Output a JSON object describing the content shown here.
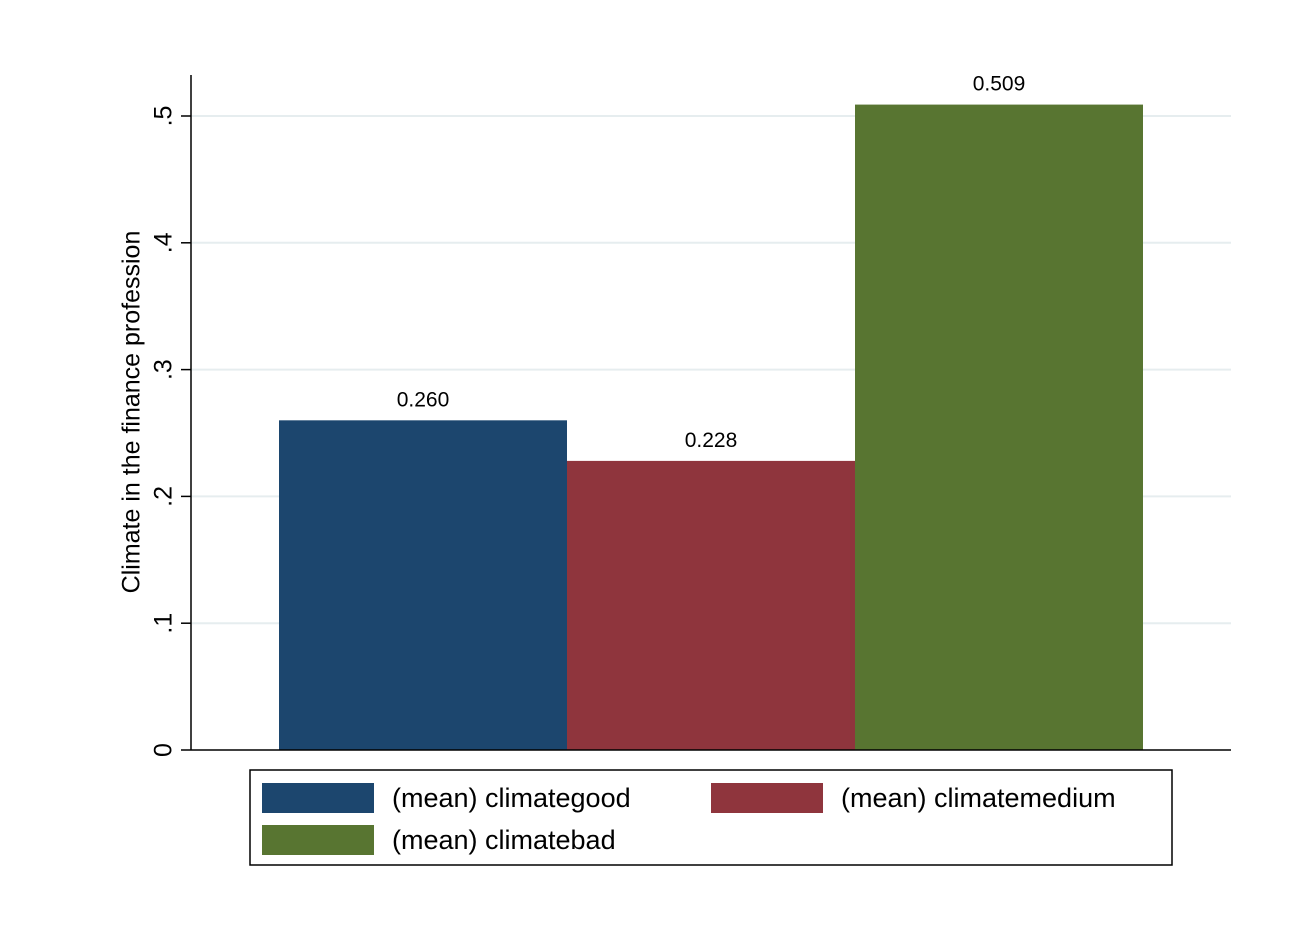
{
  "chart_data": {
    "type": "bar",
    "title": "",
    "xlabel": "",
    "ylabel": "Climate in the finance profession",
    "ylim": [
      0,
      0.5
    ],
    "yticks": [
      {
        "value": 0,
        "label": "0"
      },
      {
        "value": 0.1,
        "label": ".1"
      },
      {
        "value": 0.2,
        "label": ".2"
      },
      {
        "value": 0.3,
        "label": ".3"
      },
      {
        "value": 0.4,
        "label": ".4"
      },
      {
        "value": 0.5,
        "label": ".5"
      }
    ],
    "grid": true,
    "legend_position": "bottom",
    "series": [
      {
        "name": "(mean) climategood",
        "value": 0.26,
        "label": "0.260",
        "color": "#1c466e"
      },
      {
        "name": "(mean) climatemedium",
        "value": 0.228,
        "label": "0.228",
        "color": "#8f353d"
      },
      {
        "name": "(mean) climatebad",
        "value": 0.509,
        "label": "0.509",
        "color": "#587531"
      }
    ]
  }
}
